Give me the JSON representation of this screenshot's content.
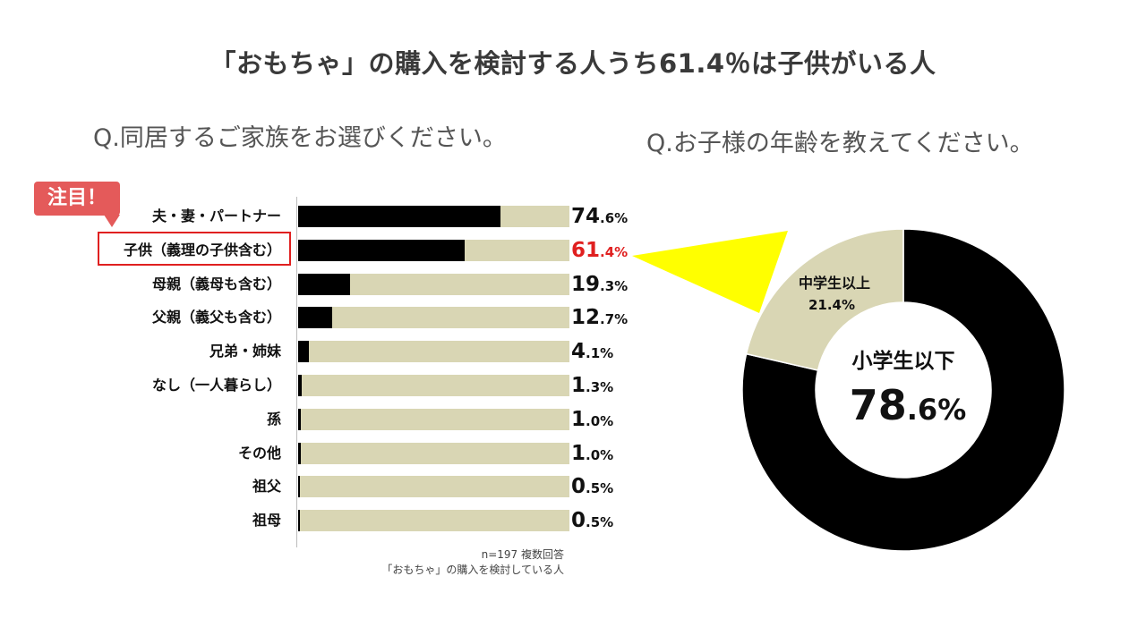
{
  "title": "「おもちゃ」の購入を検討する人うち61.4％は子供がいる人",
  "question_left": "Q.同居するご家族をお選びください。",
  "question_right": "Q.お子様の年齢を教えてください。",
  "badge": "注目！",
  "footnote": {
    "line1": "n=197 複数回答",
    "line2": "「おもちゃ」の購入を検討している人"
  },
  "colors": {
    "bar_fill": "#000000",
    "bar_track": "#d9d6b4",
    "highlight": "#e02020",
    "badge": "#e45a5a",
    "callout": "#ffff00",
    "donut_main": "#000000",
    "donut_secondary": "#d9d6b4"
  },
  "chart_data": [
    {
      "type": "bar",
      "orientation": "horizontal",
      "categories": [
        "夫・妻・パートナー",
        "子供（義理の子供含む）",
        "母親（義母も含む）",
        "父親（義父も含む）",
        "兄弟・姉妹",
        "なし（一人暮らし）",
        "孫",
        "その他",
        "祖父",
        "祖母"
      ],
      "values": [
        74.6,
        61.4,
        19.3,
        12.7,
        4.1,
        1.3,
        1.0,
        1.0,
        0.5,
        0.5
      ],
      "value_labels": [
        {
          "int": "74",
          "dec": ".6%"
        },
        {
          "int": "61",
          "dec": ".4%"
        },
        {
          "int": "19",
          "dec": ".3%"
        },
        {
          "int": "12",
          "dec": ".7%"
        },
        {
          "int": "4",
          "dec": ".1%"
        },
        {
          "int": "1",
          "dec": ".3%"
        },
        {
          "int": "1",
          "dec": ".0%"
        },
        {
          "int": "1",
          "dec": ".0%"
        },
        {
          "int": "0",
          "dec": ".5%"
        },
        {
          "int": "0",
          "dec": ".5%"
        }
      ],
      "highlighted_index": 1,
      "xlim": [
        0,
        100
      ],
      "unit": "%"
    },
    {
      "type": "pie",
      "style": "donut",
      "slices": [
        {
          "label": "小学生以下",
          "value": 78.6,
          "value_label_int": "78",
          "value_label_dec": ".6%"
        },
        {
          "label": "中学生以上",
          "value": 21.4,
          "value_label": "21.4%"
        }
      ],
      "unit": "%"
    }
  ]
}
